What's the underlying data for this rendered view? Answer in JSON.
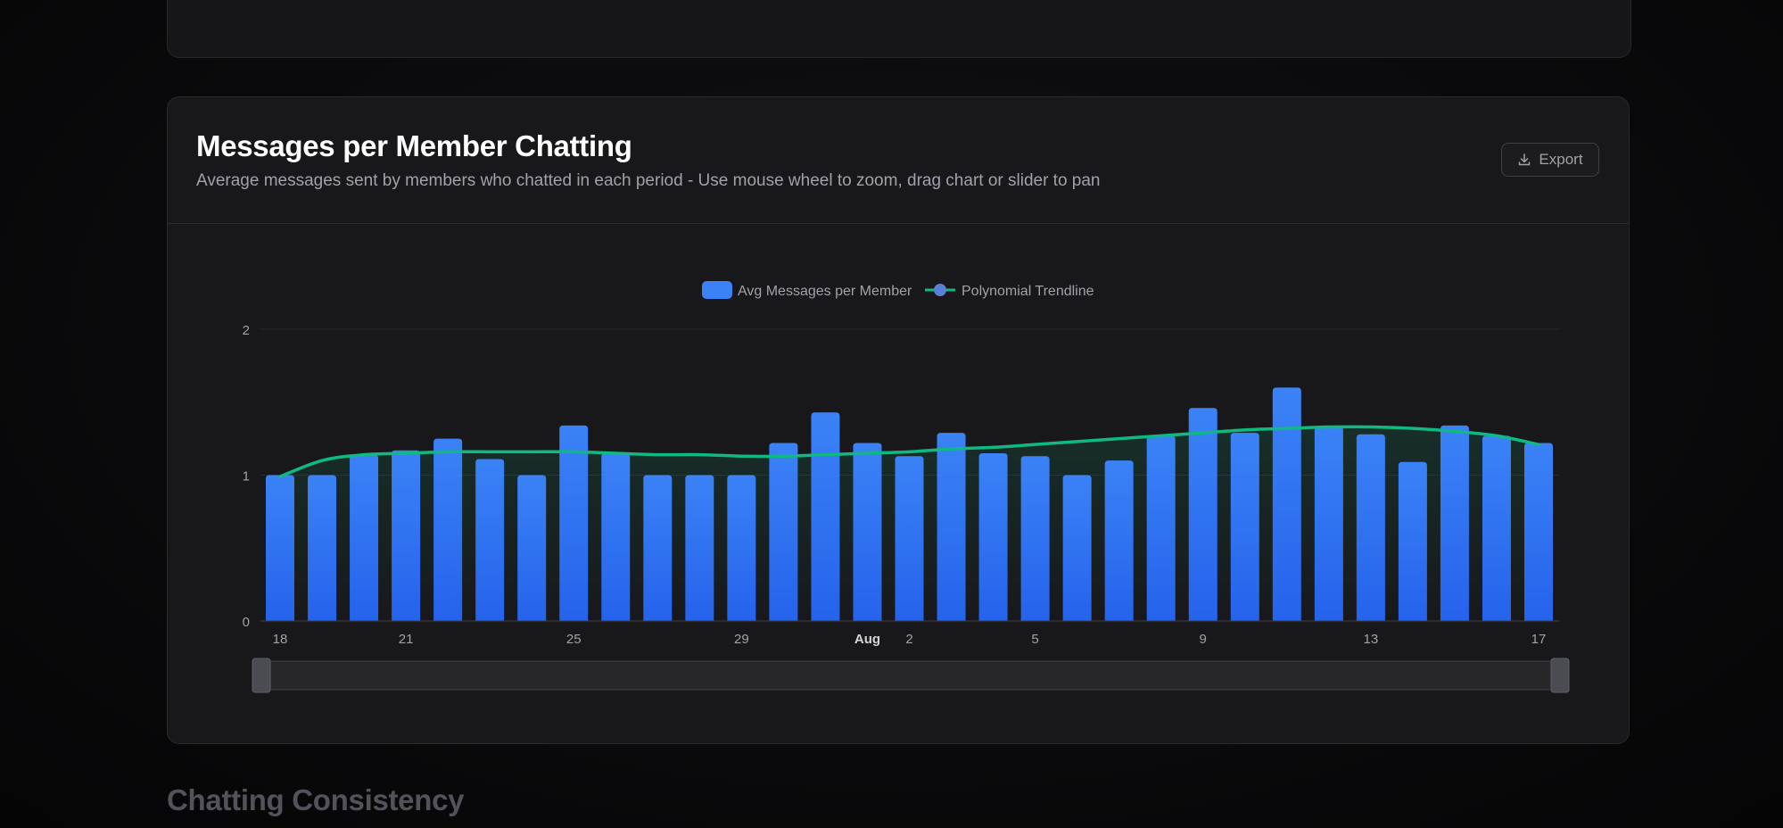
{
  "card": {
    "title": "Messages per Member Chatting",
    "description": "Average messages sent by members who chatted in each period - Use mouse wheel to zoom, drag chart or slider to pan",
    "export_label": "Export"
  },
  "next_section": {
    "title": "Chatting Consistency"
  },
  "colors": {
    "bar_top": "#3b82f6",
    "bar_bottom": "#2563eb",
    "trendline": "#10b981",
    "legend_marker": "#5b7fd6"
  },
  "chart_data": {
    "type": "bar",
    "legend": [
      {
        "name": "Avg Messages per Member",
        "kind": "bar"
      },
      {
        "name": "Polynomial Trendline",
        "kind": "line"
      }
    ],
    "legend_position": "top-center",
    "ylim": [
      0,
      2
    ],
    "y_ticks": [
      "0",
      "1",
      "2"
    ],
    "grid": true,
    "x": [
      "Jul 18",
      "Jul 19",
      "Jul 20",
      "Jul 21",
      "Jul 22",
      "Jul 23",
      "Jul 24",
      "Jul 25",
      "Jul 26",
      "Jul 27",
      "Jul 28",
      "Jul 29",
      "Jul 30",
      "Jul 31",
      "Aug 1",
      "Aug 2",
      "Aug 3",
      "Aug 4",
      "Aug 5",
      "Aug 6",
      "Aug 7",
      "Aug 8",
      "Aug 9",
      "Aug 10",
      "Aug 11",
      "Aug 12",
      "Aug 13",
      "Aug 14",
      "Aug 15",
      "Aug 16",
      "Aug 17"
    ],
    "x_ticks": [
      {
        "label": "18",
        "index": 0,
        "bold": false
      },
      {
        "label": "21",
        "index": 3,
        "bold": false
      },
      {
        "label": "25",
        "index": 7,
        "bold": false
      },
      {
        "label": "29",
        "index": 11,
        "bold": false
      },
      {
        "label": "Aug",
        "index": 14,
        "bold": true
      },
      {
        "label": "2",
        "index": 15,
        "bold": false
      },
      {
        "label": "5",
        "index": 18,
        "bold": false
      },
      {
        "label": "9",
        "index": 22,
        "bold": false
      },
      {
        "label": "13",
        "index": 26,
        "bold": false
      },
      {
        "label": "17",
        "index": 30,
        "bold": false
      }
    ],
    "series": [
      {
        "name": "Avg Messages per Member",
        "type": "bar",
        "values": [
          1.0,
          1.0,
          1.14,
          1.17,
          1.25,
          1.11,
          1.0,
          1.34,
          1.15,
          1.0,
          1.0,
          1.0,
          1.22,
          1.43,
          1.22,
          1.13,
          1.29,
          1.15,
          1.13,
          1.0,
          1.1,
          1.27,
          1.46,
          1.29,
          1.6,
          1.33,
          1.28,
          1.09,
          1.34,
          1.27,
          1.22
        ]
      },
      {
        "name": "Polynomial Trendline",
        "type": "line",
        "values": [
          0.99,
          1.1,
          1.14,
          1.15,
          1.16,
          1.16,
          1.16,
          1.16,
          1.15,
          1.14,
          1.14,
          1.13,
          1.13,
          1.14,
          1.15,
          1.16,
          1.18,
          1.19,
          1.21,
          1.23,
          1.25,
          1.27,
          1.29,
          1.31,
          1.32,
          1.33,
          1.33,
          1.32,
          1.3,
          1.27,
          1.21
        ]
      }
    ],
    "range_slider": {
      "start": 0,
      "end": 1
    }
  }
}
